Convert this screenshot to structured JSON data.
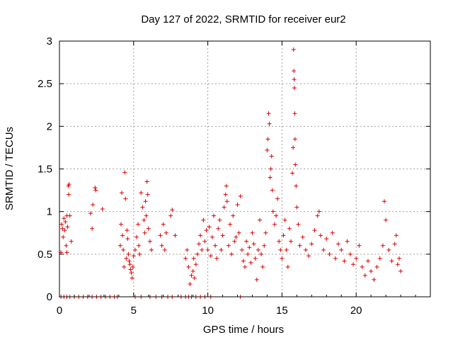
{
  "chart_data": {
    "type": "scatter",
    "title": "Day 127 of 2022, SRMTID for receiver eur2",
    "xlabel": "GPS time / hours",
    "ylabel": "SRMTID / TECUs",
    "xlim": [
      0,
      25
    ],
    "ylim": [
      0,
      3
    ],
    "xticks": [
      0,
      5,
      10,
      15,
      20
    ],
    "yticks": [
      0,
      0.5,
      1,
      1.5,
      2,
      2.5,
      3
    ],
    "xtick_labels": [
      "0",
      "5",
      "10",
      "15",
      "20"
    ],
    "ytick_labels": [
      "0",
      "0.5",
      "1",
      "1.5",
      "2",
      "2.5",
      "3"
    ],
    "grid": true,
    "marker": "+",
    "color": "#dd0000",
    "series": [
      {
        "name": "SRMTID",
        "points": [
          [
            0.1,
            0.52
          ],
          [
            0.15,
            0.85
          ],
          [
            0.2,
            0.8
          ],
          [
            0.25,
            0.7
          ],
          [
            0.3,
            0.92
          ],
          [
            0.35,
            0.78
          ],
          [
            0.4,
            0.88
          ],
          [
            0.45,
            0.6
          ],
          [
            0.5,
            0.95
          ],
          [
            0.55,
            0.82
          ],
          [
            0.6,
            1.3
          ],
          [
            0.62,
            1.2
          ],
          [
            0.65,
            1.32
          ],
          [
            0.7,
            0.95
          ],
          [
            0.8,
            0.65
          ],
          [
            0.5,
            0.52
          ],
          [
            2.1,
            0.98
          ],
          [
            2.2,
            0.8
          ],
          [
            2.25,
            1.08
          ],
          [
            2.4,
            1.28
          ],
          [
            2.45,
            1.25
          ],
          [
            2.9,
            1.03
          ],
          [
            4.1,
            0.6
          ],
          [
            4.15,
            0.85
          ],
          [
            4.2,
            1.22
          ],
          [
            4.25,
            0.72
          ],
          [
            4.3,
            0.55
          ],
          [
            4.35,
            0.35
          ],
          [
            4.4,
            1.46
          ],
          [
            4.45,
            1.15
          ],
          [
            4.5,
            0.45
          ],
          [
            4.55,
            0.78
          ],
          [
            4.6,
            0.68
          ],
          [
            4.65,
            0.5
          ],
          [
            4.7,
            0.42
          ],
          [
            4.75,
            0.38
          ],
          [
            4.8,
            0.32
          ],
          [
            4.85,
            0.28
          ],
          [
            4.9,
            0.22
          ],
          [
            4.95,
            0.35
          ],
          [
            5.0,
            0.48
          ],
          [
            5.1,
            0.55
          ],
          [
            5.2,
            0.7
          ],
          [
            5.3,
            0.85
          ],
          [
            5.35,
            0.6
          ],
          [
            5.4,
            0.5
          ],
          [
            5.5,
            1.22
          ],
          [
            5.6,
            1.05
          ],
          [
            5.7,
            0.9
          ],
          [
            5.75,
            0.75
          ],
          [
            5.8,
            1.12
          ],
          [
            5.85,
            0.95
          ],
          [
            5.9,
            1.35
          ],
          [
            5.95,
            1.2
          ],
          [
            6.0,
            0.8
          ],
          [
            6.1,
            0.65
          ],
          [
            6.2,
            0.55
          ],
          [
            6.8,
            0.72
          ],
          [
            6.9,
            0.6
          ],
          [
            7.0,
            0.85
          ],
          [
            7.1,
            0.55
          ],
          [
            7.2,
            0.75
          ],
          [
            7.5,
            0.95
          ],
          [
            7.6,
            1.02
          ],
          [
            7.8,
            0.72
          ],
          [
            8.5,
            0.45
          ],
          [
            8.6,
            0.55
          ],
          [
            8.7,
            0.35
          ],
          [
            8.8,
            0.15
          ],
          [
            8.9,
            0.25
          ],
          [
            9.0,
            0.3
          ],
          [
            9.05,
            0.45
          ],
          [
            9.1,
            0.22
          ],
          [
            9.2,
            0.38
          ],
          [
            9.3,
            0.5
          ],
          [
            9.4,
            0.62
          ],
          [
            9.5,
            0.72
          ],
          [
            9.6,
            0.55
          ],
          [
            9.7,
            0.9
          ],
          [
            9.8,
            0.65
          ],
          [
            9.9,
            0.78
          ],
          [
            10.0,
            0.55
          ],
          [
            10.1,
            0.82
          ],
          [
            10.2,
            0.48
          ],
          [
            10.3,
            0.7
          ],
          [
            10.4,
            0.95
          ],
          [
            10.5,
            0.6
          ],
          [
            10.6,
            0.45
          ],
          [
            10.7,
            0.8
          ],
          [
            10.8,
            0.9
          ],
          [
            10.9,
            0.55
          ],
          [
            11.0,
            0.72
          ],
          [
            11.1,
            1.05
          ],
          [
            11.2,
            1.2
          ],
          [
            11.25,
            1.3
          ],
          [
            11.3,
            1.12
          ],
          [
            11.4,
            0.6
          ],
          [
            11.5,
            0.85
          ],
          [
            11.6,
            0.5
          ],
          [
            11.7,
            0.95
          ],
          [
            11.8,
            0.65
          ],
          [
            11.9,
            0.7
          ],
          [
            12.0,
            1.08
          ],
          [
            12.1,
            0.75
          ],
          [
            12.2,
            1.18
          ],
          [
            12.3,
            0.55
          ],
          [
            12.4,
            0.42
          ],
          [
            12.5,
            0.35
          ],
          [
            12.6,
            0.65
          ],
          [
            12.7,
            0.5
          ],
          [
            12.8,
            0.58
          ],
          [
            12.9,
            0.4
          ],
          [
            13.0,
            0.75
          ],
          [
            13.1,
            0.62
          ],
          [
            13.2,
            0.45
          ],
          [
            13.3,
            0.2
          ],
          [
            13.4,
            0.55
          ],
          [
            13.5,
            0.9
          ],
          [
            13.6,
            0.5
          ],
          [
            13.7,
            0.35
          ],
          [
            13.8,
            0.6
          ],
          [
            13.9,
            0.75
          ],
          [
            14.0,
            1.72
          ],
          [
            14.05,
            1.85
          ],
          [
            14.1,
            2.15
          ],
          [
            14.15,
            2.03
          ],
          [
            14.2,
            1.4
          ],
          [
            14.25,
            1.5
          ],
          [
            14.3,
            1.65
          ],
          [
            14.35,
            1.25
          ],
          [
            14.4,
            1.0
          ],
          [
            14.5,
            0.85
          ],
          [
            14.6,
            0.95
          ],
          [
            14.7,
            1.15
          ],
          [
            14.8,
            0.65
          ],
          [
            14.9,
            0.55
          ],
          [
            15.0,
            0.45
          ],
          [
            15.1,
            0.72
          ],
          [
            15.2,
            0.9
          ],
          [
            15.3,
            0.55
          ],
          [
            15.4,
            0.35
          ],
          [
            15.5,
            0.8
          ],
          [
            15.6,
            0.65
          ],
          [
            15.7,
            1.45
          ],
          [
            15.75,
            1.75
          ],
          [
            15.78,
            2.9
          ],
          [
            15.8,
            2.65
          ],
          [
            15.82,
            2.55
          ],
          [
            15.84,
            2.45
          ],
          [
            15.86,
            2.15
          ],
          [
            15.88,
            1.85
          ],
          [
            15.9,
            1.55
          ],
          [
            15.95,
            1.3
          ],
          [
            16.0,
            1.05
          ],
          [
            16.1,
            0.85
          ],
          [
            16.2,
            0.6
          ],
          [
            16.4,
            0.7
          ],
          [
            16.6,
            0.55
          ],
          [
            16.8,
            0.48
          ],
          [
            17.0,
            0.62
          ],
          [
            17.2,
            0.78
          ],
          [
            17.4,
            0.95
          ],
          [
            17.5,
            1.0
          ],
          [
            17.6,
            0.72
          ],
          [
            17.8,
            0.55
          ],
          [
            18.0,
            0.68
          ],
          [
            18.2,
            0.5
          ],
          [
            18.4,
            0.75
          ],
          [
            18.6,
            0.45
          ],
          [
            18.8,
            0.62
          ],
          [
            19.0,
            0.55
          ],
          [
            19.2,
            0.42
          ],
          [
            19.4,
            0.65
          ],
          [
            19.6,
            0.5
          ],
          [
            19.8,
            0.38
          ],
          [
            20.0,
            0.45
          ],
          [
            20.2,
            0.6
          ],
          [
            20.4,
            0.35
          ],
          [
            20.6,
            0.25
          ],
          [
            20.8,
            0.42
          ],
          [
            21.0,
            0.3
          ],
          [
            21.2,
            0.2
          ],
          [
            21.4,
            0.35
          ],
          [
            21.6,
            0.45
          ],
          [
            21.8,
            0.6
          ],
          [
            21.9,
            1.12
          ],
          [
            22.0,
            0.9
          ],
          [
            22.2,
            0.55
          ],
          [
            22.4,
            0.42
          ],
          [
            22.6,
            0.62
          ],
          [
            22.7,
            0.72
          ],
          [
            22.8,
            0.38
          ],
          [
            22.9,
            0.45
          ],
          [
            23.0,
            0.3
          ],
          [
            0.1,
            0
          ],
          [
            0.3,
            0
          ],
          [
            0.5,
            0
          ],
          [
            0.7,
            0
          ],
          [
            1.0,
            0
          ],
          [
            1.3,
            0
          ],
          [
            1.6,
            0
          ],
          [
            1.9,
            0
          ],
          [
            2.2,
            0
          ],
          [
            2.5,
            0
          ],
          [
            2.8,
            0
          ],
          [
            3.1,
            0
          ],
          [
            3.4,
            0
          ],
          [
            3.7,
            0
          ],
          [
            3.9,
            0
          ],
          [
            5.1,
            0
          ],
          [
            5.5,
            0
          ],
          [
            6.1,
            0
          ],
          [
            6.5,
            0
          ],
          [
            6.9,
            0
          ],
          [
            7.3,
            0
          ],
          [
            7.6,
            0
          ],
          [
            8.2,
            0
          ],
          [
            8.5,
            0
          ],
          [
            8.7,
            0
          ],
          [
            8.9,
            0
          ],
          [
            9.2,
            0
          ],
          [
            9.5,
            0
          ],
          [
            9.8,
            0
          ],
          [
            10.2,
            0
          ],
          [
            12.2,
            0
          ]
        ]
      }
    ]
  }
}
